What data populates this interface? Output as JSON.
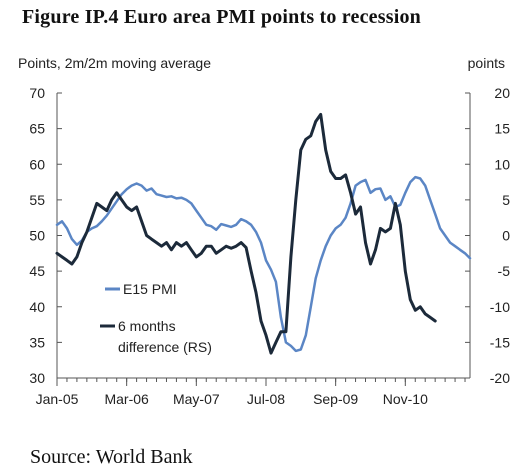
{
  "figure": {
    "title": "Figure IP.4  Euro area PMI points to recession",
    "source": "Source:  World Bank"
  },
  "chart_data": {
    "type": "line",
    "title": "Figure IP.4  Euro area PMI points to recession",
    "y_left_label": "Points, 2m/2m moving average",
    "y_right_label": "points",
    "y_left_range": [
      30,
      70
    ],
    "y_right_range": [
      -20,
      20
    ],
    "y_left_ticks": [
      30,
      35,
      40,
      45,
      50,
      55,
      60,
      65,
      70
    ],
    "y_right_ticks": [
      -20,
      -15,
      -10,
      -5,
      0,
      5,
      10,
      15,
      20
    ],
    "x_range": [
      "2005-01",
      "2011-12"
    ],
    "x_ticks": [
      "Jan-05",
      "Mar-06",
      "May-07",
      "Jul-08",
      "Sep-09",
      "Nov-10"
    ],
    "grid": false,
    "legend_position": "lower-left inside plot",
    "colors": {
      "E15 PMI": "#5b86c5",
      "6 months difference (RS)": "#1c2a3a"
    },
    "series": [
      {
        "name": "E15 PMI",
        "axis": "left",
        "x": [
          "2005-01",
          "2005-02",
          "2005-03",
          "2005-04",
          "2005-05",
          "2005-06",
          "2005-07",
          "2005-08",
          "2005-09",
          "2005-10",
          "2005-11",
          "2005-12",
          "2006-01",
          "2006-02",
          "2006-03",
          "2006-04",
          "2006-05",
          "2006-06",
          "2006-07",
          "2006-08",
          "2006-09",
          "2006-10",
          "2006-11",
          "2006-12",
          "2007-01",
          "2007-02",
          "2007-03",
          "2007-04",
          "2007-05",
          "2007-06",
          "2007-07",
          "2007-08",
          "2007-09",
          "2007-10",
          "2007-11",
          "2007-12",
          "2008-01",
          "2008-02",
          "2008-03",
          "2008-04",
          "2008-05",
          "2008-06",
          "2008-07",
          "2008-08",
          "2008-09",
          "2008-10",
          "2008-11",
          "2008-12",
          "2009-01",
          "2009-02",
          "2009-03",
          "2009-04",
          "2009-05",
          "2009-06",
          "2009-07",
          "2009-08",
          "2009-09",
          "2009-10",
          "2009-11",
          "2009-12",
          "2010-01",
          "2010-02",
          "2010-03",
          "2010-04",
          "2010-05",
          "2010-06",
          "2010-07",
          "2010-08",
          "2010-09",
          "2010-10",
          "2010-11",
          "2010-12",
          "2011-01",
          "2011-02",
          "2011-03",
          "2011-04",
          "2011-05",
          "2011-06",
          "2011-07",
          "2011-08",
          "2011-09",
          "2011-10",
          "2011-11",
          "2011-12"
        ],
        "values": [
          51.5,
          52.0,
          51.0,
          49.5,
          48.7,
          49.3,
          50.5,
          51.0,
          51.3,
          52.0,
          52.8,
          53.8,
          54.8,
          55.8,
          56.5,
          57.0,
          57.3,
          57.0,
          56.3,
          56.6,
          55.8,
          55.6,
          55.4,
          55.5,
          55.2,
          55.3,
          55.0,
          54.5,
          53.5,
          52.5,
          51.5,
          51.3,
          50.8,
          51.6,
          51.4,
          51.2,
          51.5,
          52.3,
          52.0,
          51.5,
          50.5,
          49.0,
          46.5,
          45.2,
          43.5,
          38.5,
          35.0,
          34.5,
          33.8,
          34.0,
          36.0,
          40.0,
          44.0,
          46.5,
          48.5,
          50.0,
          51.0,
          51.5,
          52.5,
          54.5,
          57.0,
          57.5,
          57.8,
          56.0,
          56.5,
          56.6,
          55.0,
          55.5,
          54.0,
          54.3,
          56.0,
          57.5,
          58.2,
          58.0,
          57.0,
          55.0,
          53.0,
          51.0,
          50.0,
          49.0,
          48.5,
          48.0,
          47.5,
          46.8
        ]
      },
      {
        "name": "6 months difference (RS)",
        "axis": "right",
        "x": [
          "2005-01",
          "2005-02",
          "2005-03",
          "2005-04",
          "2005-05",
          "2005-06",
          "2005-07",
          "2005-08",
          "2005-09",
          "2005-10",
          "2005-11",
          "2005-12",
          "2006-01",
          "2006-02",
          "2006-03",
          "2006-04",
          "2006-05",
          "2006-06",
          "2006-07",
          "2006-08",
          "2006-09",
          "2006-10",
          "2006-11",
          "2006-12",
          "2007-01",
          "2007-02",
          "2007-03",
          "2007-04",
          "2007-05",
          "2007-06",
          "2007-07",
          "2007-08",
          "2007-09",
          "2007-10",
          "2007-11",
          "2007-12",
          "2008-01",
          "2008-02",
          "2008-03",
          "2008-04",
          "2008-05",
          "2008-06",
          "2008-07",
          "2008-08",
          "2008-09",
          "2008-10",
          "2008-11",
          "2008-12",
          "2009-01",
          "2009-02",
          "2009-03",
          "2009-04",
          "2009-05",
          "2009-06",
          "2009-07",
          "2009-08",
          "2009-09",
          "2009-10",
          "2009-11",
          "2009-12",
          "2010-01",
          "2010-02",
          "2010-03",
          "2010-04",
          "2010-05",
          "2010-06",
          "2010-07",
          "2010-08",
          "2010-09",
          "2010-10",
          "2010-11",
          "2010-12",
          "2011-01",
          "2011-02",
          "2011-03",
          "2011-04",
          "2011-05",
          "2011-06",
          "2011-07",
          "2011-08",
          "2011-09",
          "2011-10",
          "2011-11",
          "2011-12"
        ],
        "values": [
          -2.5,
          -3.0,
          -3.5,
          -4.0,
          -3.0,
          -1.0,
          0.5,
          2.5,
          4.5,
          4.0,
          3.5,
          5.0,
          6.0,
          5.0,
          4.0,
          3.5,
          4.0,
          2.0,
          0.0,
          -0.5,
          -1.0,
          -1.5,
          -1.0,
          -2.0,
          -1.0,
          -1.5,
          -1.0,
          -2.0,
          -3.0,
          -2.5,
          -1.5,
          -1.5,
          -2.5,
          -2.0,
          -1.5,
          -1.8,
          -1.5,
          -1.0,
          -1.7,
          -5.0,
          -8.0,
          -12.0,
          -14.0,
          -16.5,
          -15.0,
          -13.5,
          -13.5,
          -3.0,
          5.0,
          12.0,
          13.5,
          14.0,
          16.0,
          17.0,
          12.0,
          9.0,
          8.0,
          8.0,
          8.5,
          6.0,
          3.0,
          4.0,
          -1.0,
          -4.0,
          -2.0,
          1.0,
          0.5,
          1.0,
          4.5,
          1.5,
          -5.0,
          -9.0,
          -10.5,
          -10.0,
          -11.0,
          -11.5,
          -12.0,
          null,
          null,
          null,
          null,
          null,
          null,
          null
        ]
      }
    ]
  }
}
